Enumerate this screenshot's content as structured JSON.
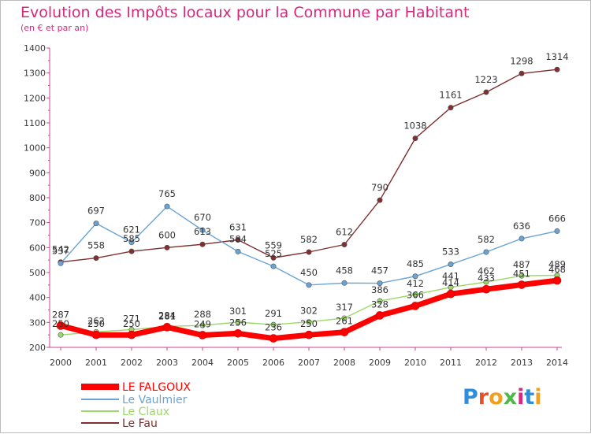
{
  "title": "Evolution des Impôts locaux pour la Commune par Habitant",
  "subtitle": "(en € et par an)",
  "logo": {
    "letters": [
      "P",
      "r",
      "o",
      "x",
      "i",
      "t",
      "i"
    ],
    "colors": [
      "#2f8ddc",
      "#e8502a",
      "#f0a01e",
      "#4fb848",
      "#d6297e",
      "#2f8ddc",
      "#f0a01e"
    ]
  },
  "chart_data": {
    "type": "line",
    "x": [
      "2000",
      "2001",
      "2002",
      "2003",
      "2004",
      "2005",
      "2006",
      "2007",
      "2008",
      "2009",
      "2010",
      "2011",
      "2012",
      "2013",
      "2014"
    ],
    "ylim": [
      200,
      1400
    ],
    "yticks": [
      "200",
      "300",
      "400",
      "500",
      "600",
      "700",
      "800",
      "900",
      "1000",
      "1100",
      "1200",
      "1300",
      "1400"
    ],
    "grid": false,
    "legend_position": "bottom-left",
    "series": [
      {
        "name": "LE FALGOUX",
        "color": "#ff0000",
        "values": [
          287,
          250,
          250,
          281,
          249,
          256,
          236,
          250,
          261,
          328,
          366,
          414,
          433,
          451,
          468
        ]
      },
      {
        "name": "Le Vaulmier",
        "color": "#6aa3d5",
        "values": [
          537,
          697,
          621,
          765,
          670,
          584,
          525,
          450,
          458,
          457,
          485,
          533,
          582,
          636,
          666
        ]
      },
      {
        "name": "Le Claux",
        "color": "#9ad86a",
        "values": [
          250,
          262,
          271,
          284,
          288,
          301,
          291,
          302,
          317,
          386,
          412,
          441,
          462,
          487,
          489
        ]
      },
      {
        "name": "Le Fau",
        "color": "#7f2f2f",
        "values": [
          542,
          558,
          585,
          600,
          613,
          631,
          559,
          582,
          612,
          790,
          1038,
          1161,
          1223,
          1298,
          1314
        ]
      }
    ]
  }
}
